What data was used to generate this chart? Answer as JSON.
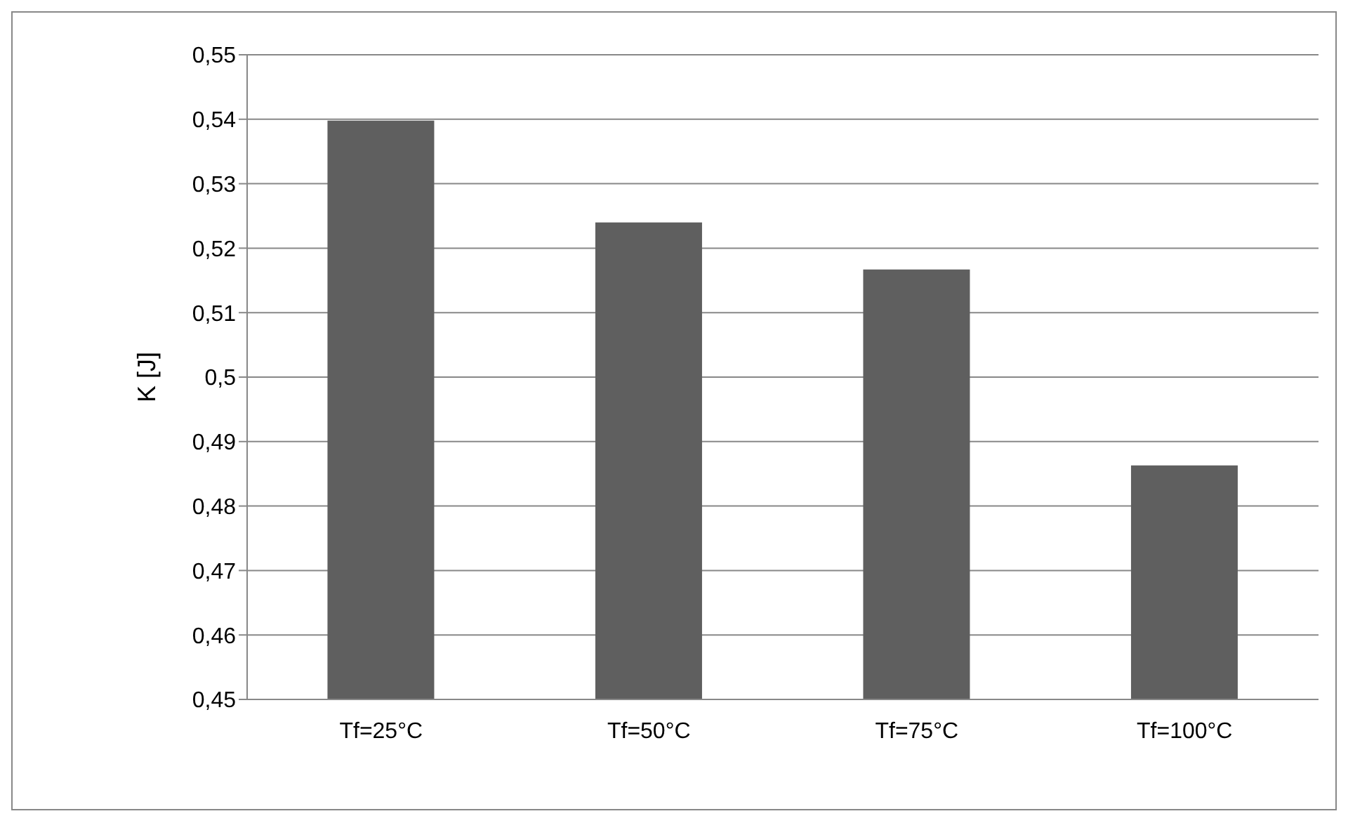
{
  "chart_data": {
    "type": "bar",
    "ylabel": "K [J]",
    "categories": [
      "Tf=25°C",
      "Tf=50°C",
      "Tf=75°C",
      "Tf=100°C"
    ],
    "values": [
      0.5398,
      0.524,
      0.5167,
      0.4863
    ],
    "color": "#5f5f5f",
    "ylim": [
      0.45,
      0.55
    ],
    "yticks": [
      {
        "value": 0.45,
        "label": "0,45"
      },
      {
        "value": 0.46,
        "label": "0,46"
      },
      {
        "value": 0.47,
        "label": "0,47"
      },
      {
        "value": 0.48,
        "label": "0,48"
      },
      {
        "value": 0.49,
        "label": "0,49"
      },
      {
        "value": 0.5,
        "label": "0,5"
      },
      {
        "value": 0.51,
        "label": "0,51"
      },
      {
        "value": 0.52,
        "label": "0,52"
      },
      {
        "value": 0.53,
        "label": "0,53"
      },
      {
        "value": 0.54,
        "label": "0,54"
      },
      {
        "value": 0.55,
        "label": "0,55"
      }
    ],
    "grid": "y"
  }
}
